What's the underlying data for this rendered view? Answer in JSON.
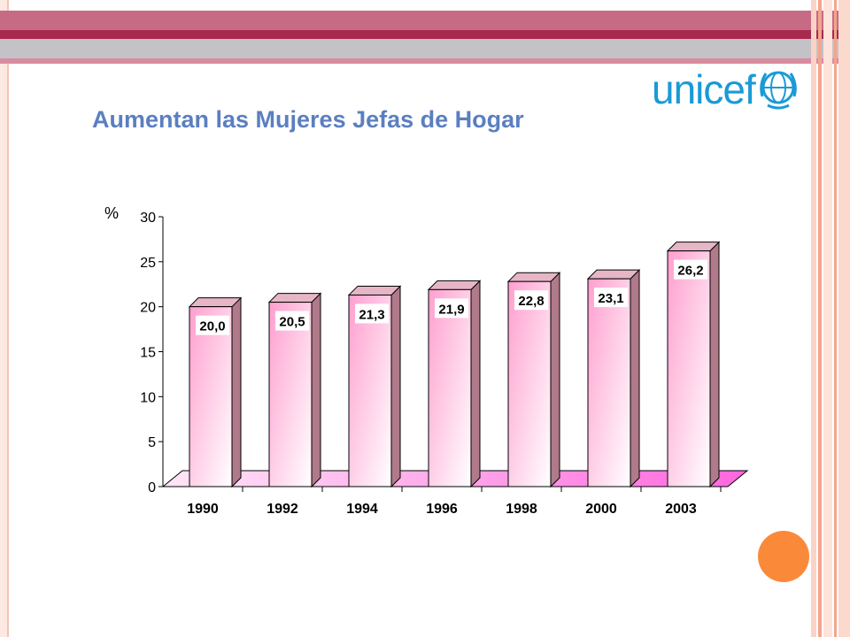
{
  "slide": {
    "title": "Aumentan las Mujeres Jefas de Hogar",
    "logo_text": "unicef",
    "colors": {
      "title": "#5b7fc0",
      "logo": "#1a9ad6",
      "bar_front_top": "#ff9fcf",
      "bar_front_bottom": "#ffffff",
      "bar_side": "#b07a8a",
      "bar_top": "#e6b6c6",
      "floor": "#ff66dd",
      "accent_dot": "#fa8a3a"
    }
  },
  "chart_data": {
    "type": "bar",
    "unit_label": "%",
    "categories": [
      "1990",
      "1992",
      "1994",
      "1996",
      "1998",
      "2000",
      "2003"
    ],
    "values": [
      20.0,
      20.5,
      21.3,
      21.9,
      22.8,
      23.1,
      26.2
    ],
    "data_labels": [
      "20,0",
      "20,5",
      "21,3",
      "21,9",
      "22,8",
      "23,1",
      "26,2"
    ],
    "y_ticks": [
      "0",
      "5",
      "10",
      "15",
      "20",
      "25",
      "30"
    ],
    "ylim": [
      0,
      30
    ],
    "grid": false,
    "legend": "none",
    "style": "3d"
  }
}
